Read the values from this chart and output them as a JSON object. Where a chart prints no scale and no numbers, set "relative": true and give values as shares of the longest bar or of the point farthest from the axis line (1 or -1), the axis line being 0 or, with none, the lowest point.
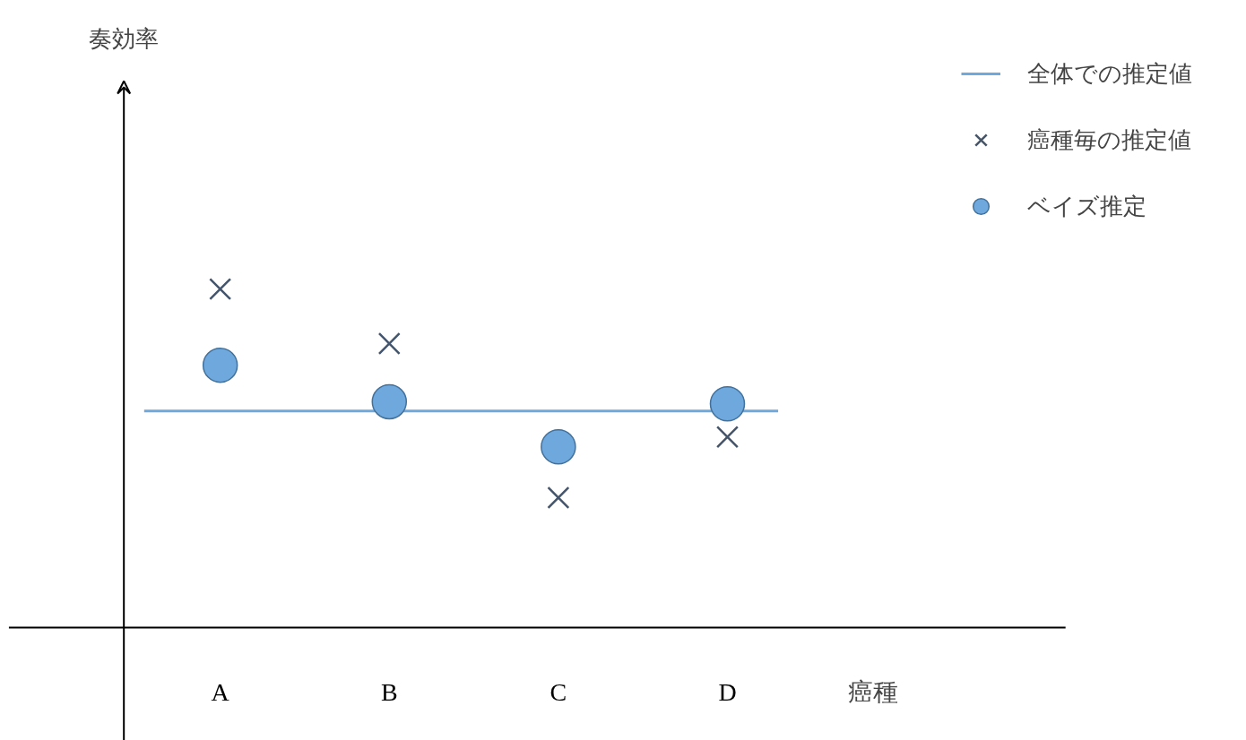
{
  "chart_data": {
    "type": "scatter",
    "relative": true,
    "annotations": [
      "奏効率"
    ],
    "xlabel": "癌種",
    "categories": [
      "A",
      "B",
      "C",
      "D"
    ],
    "legend": "top right",
    "ref_lines": [
      {
        "axis": "y",
        "value": 0.64,
        "label": "全体での推定値",
        "color": "#6fa8dc"
      }
    ],
    "series": [
      {
        "name": "癌種毎の推定値",
        "color": "#44546a",
        "marker": "cross",
        "values": [
          1.0,
          0.839,
          0.384,
          0.563
        ]
      },
      {
        "name": "ベイズ推定",
        "color": "#6fa8dc",
        "marker": "circle",
        "values": [
          0.775,
          0.667,
          0.534,
          0.661
        ]
      }
    ]
  }
}
